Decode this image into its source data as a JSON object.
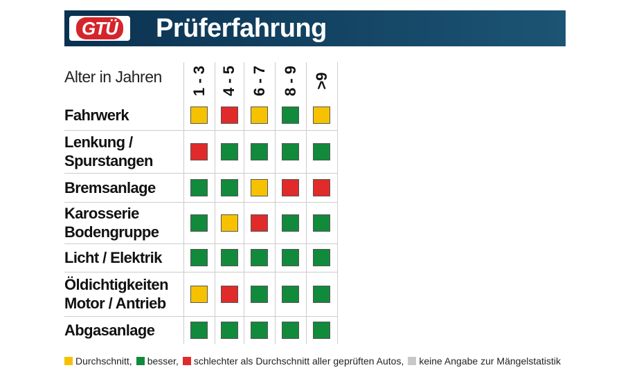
{
  "header": {
    "logo": "GTÜ",
    "title": "Prüferfahrung"
  },
  "table": {
    "corner": "Alter in Jahren",
    "columns": [
      "1 - 3",
      "4 - 5",
      "6 - 7",
      "8 - 9",
      ">9"
    ],
    "rows": [
      {
        "label": [
          "Fahrwerk"
        ],
        "cells": [
          "#f6c200",
          "#e12a2a",
          "#f6c200",
          "#118a3c",
          "#f6c200"
        ]
      },
      {
        "label": [
          "Lenkung /",
          "Spurstangen"
        ],
        "cells": [
          "#e12a2a",
          "#118a3c",
          "#118a3c",
          "#118a3c",
          "#118a3c"
        ]
      },
      {
        "label": [
          "Bremsanlage"
        ],
        "cells": [
          "#118a3c",
          "#118a3c",
          "#f6c200",
          "#e12a2a",
          "#e12a2a"
        ]
      },
      {
        "label": [
          "Karosserie",
          "Bodengruppe"
        ],
        "cells": [
          "#118a3c",
          "#f6c200",
          "#e12a2a",
          "#118a3c",
          "#118a3c"
        ]
      },
      {
        "label": [
          "Licht / Elektrik"
        ],
        "cells": [
          "#118a3c",
          "#118a3c",
          "#118a3c",
          "#118a3c",
          "#118a3c"
        ]
      },
      {
        "label": [
          "Öldichtigkeiten",
          "Motor / Antrieb"
        ],
        "cells": [
          "#f6c200",
          "#e12a2a",
          "#118a3c",
          "#118a3c",
          "#118a3c"
        ]
      },
      {
        "label": [
          "Abgasanlage"
        ],
        "cells": [
          "#118a3c",
          "#118a3c",
          "#118a3c",
          "#118a3c",
          "#118a3c"
        ]
      }
    ]
  },
  "legend": [
    {
      "color": "#f6c200",
      "text": "Durchschnitt,"
    },
    {
      "color": "#118a3c",
      "text": "besser,"
    },
    {
      "color": "#e12a2a",
      "text": "schlechter als Durchschnitt aller geprüften Autos,"
    },
    {
      "color": "#c8c8c8",
      "text": "keine Angabe zur Mängelstatistik"
    }
  ]
}
